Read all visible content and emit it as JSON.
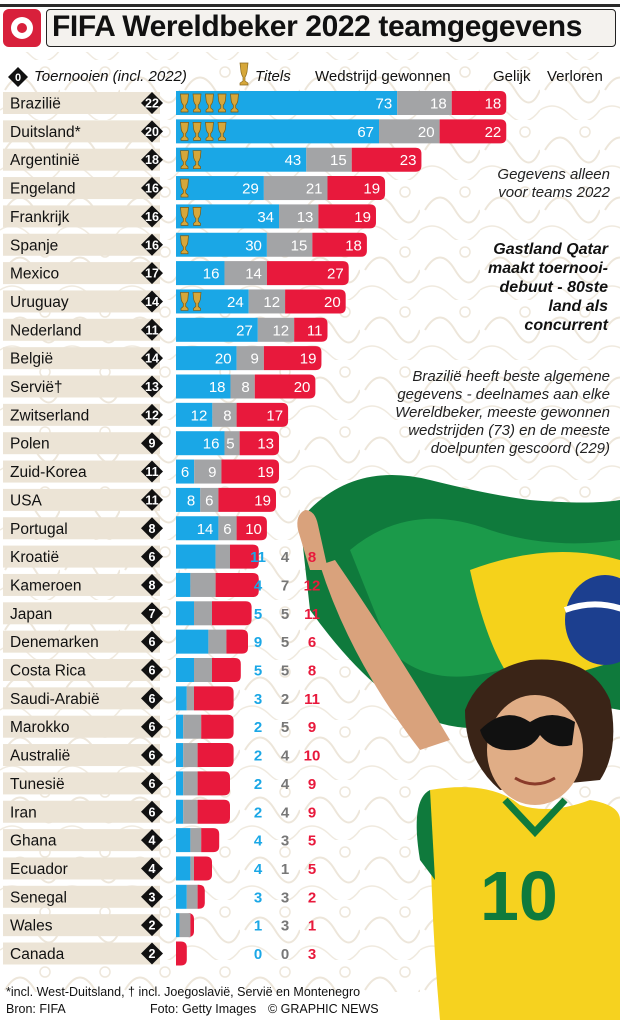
{
  "header": {
    "title": "FIFA Wereldbeker 2022 teamgegevens"
  },
  "legend": {
    "chip_value": "0",
    "tournaments_label": "Toernooien (incl. 2022)",
    "titles_label": "Titels",
    "won_label": "Wedstrijd gewonnen",
    "draw_label": "Gelijk",
    "lost_label": "Verloren"
  },
  "notes": {
    "note1": "Gegevens alleen voor teams 2022",
    "note2": "Gastland Qatar maakt toernooi-debuut - 80ste land als concurrent",
    "note3": "Brazilië heeft beste algemene gegevens - deelnames aan elke Wereldbeker, meeste gewonnen wedstrijden (73) en de meeste doelpunten gescoord (229)"
  },
  "footer": {
    "footnote": "*incl. West-Duitsland, † incl. Joegoslavië, Servië en Montenegro",
    "source": "Bron: FIFA",
    "photo": "Foto: Getty Images",
    "credit": "© GRAPHIC NEWS"
  },
  "colors": {
    "won": "#1aa7e6",
    "draw": "#a3a4a6",
    "lost": "#e8193c",
    "country_bg": "#ece4d6",
    "chip": "#111111",
    "trophy": "#d6a73a"
  },
  "chart_data": {
    "type": "bar",
    "stacked": true,
    "orientation": "horizontal",
    "categories": [
      "Brazilië",
      "Duitsland*",
      "Argentinië",
      "Engeland",
      "Frankrijk",
      "Spanje",
      "Mexico",
      "Uruguay",
      "Nederland",
      "België",
      "Servië†",
      "Zwitserland",
      "Polen",
      "Zuid-Korea",
      "USA",
      "Portugal",
      "Kroatië",
      "Kameroen",
      "Japan",
      "Denemarken",
      "Costa Rica",
      "Saudi-Arabië",
      "Marokko",
      "Australië",
      "Tunesië",
      "Iran",
      "Ghana",
      "Ecuador",
      "Senegal",
      "Wales",
      "Canada"
    ],
    "tournaments": [
      22,
      20,
      18,
      16,
      16,
      16,
      17,
      14,
      11,
      14,
      13,
      12,
      9,
      11,
      11,
      8,
      6,
      8,
      7,
      6,
      6,
      6,
      6,
      6,
      6,
      6,
      4,
      4,
      3,
      2,
      2
    ],
    "titles": [
      5,
      4,
      2,
      1,
      2,
      1,
      0,
      2,
      0,
      0,
      0,
      0,
      0,
      0,
      0,
      0,
      0,
      0,
      0,
      0,
      0,
      0,
      0,
      0,
      0,
      0,
      0,
      0,
      0,
      0,
      0
    ],
    "series": [
      {
        "name": "Wedstrijd gewonnen",
        "values": [
          73,
          67,
          43,
          29,
          34,
          30,
          16,
          24,
          27,
          20,
          18,
          12,
          16,
          6,
          8,
          14,
          11,
          4,
          5,
          9,
          5,
          3,
          2,
          2,
          2,
          2,
          4,
          4,
          3,
          1,
          0
        ]
      },
      {
        "name": "Gelijk",
        "values": [
          18,
          20,
          15,
          21,
          13,
          15,
          14,
          12,
          12,
          9,
          8,
          8,
          5,
          9,
          6,
          6,
          4,
          7,
          5,
          5,
          5,
          2,
          5,
          4,
          4,
          4,
          3,
          1,
          3,
          3,
          0
        ]
      },
      {
        "name": "Verloren",
        "values": [
          18,
          22,
          23,
          19,
          19,
          18,
          27,
          20,
          11,
          19,
          20,
          17,
          13,
          19,
          19,
          10,
          8,
          12,
          11,
          6,
          8,
          11,
          9,
          10,
          9,
          9,
          5,
          5,
          2,
          1,
          3
        ]
      }
    ]
  }
}
